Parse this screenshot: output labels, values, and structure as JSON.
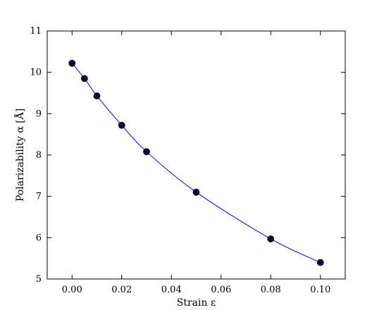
{
  "chart_data": {
    "type": "scatter",
    "title": "",
    "xlabel": "Strain ε",
    "ylabel": "Polarizability α [Å]",
    "xlim": [
      -0.01,
      0.11
    ],
    "ylim": [
      5,
      11
    ],
    "xticks": [
      0.0,
      0.02,
      0.04,
      0.06,
      0.08,
      0.1
    ],
    "xtick_labels": [
      "0.00",
      "0.02",
      "0.04",
      "0.06",
      "0.08",
      "0.10"
    ],
    "yticks": [
      5,
      6,
      7,
      8,
      9,
      10,
      11
    ],
    "ytick_labels": [
      "5",
      "6",
      "7",
      "8",
      "9",
      "10",
      "11"
    ],
    "grid": false,
    "series": [
      {
        "kind": "points",
        "color": "#000033",
        "x": [
          0.0,
          0.005,
          0.01,
          0.02,
          0.03,
          0.05,
          0.08,
          0.1
        ],
        "y": [
          10.22,
          9.85,
          9.43,
          8.72,
          8.08,
          7.1,
          5.97,
          5.4
        ]
      },
      {
        "kind": "fit-curve",
        "color": "#0000ff"
      }
    ]
  }
}
